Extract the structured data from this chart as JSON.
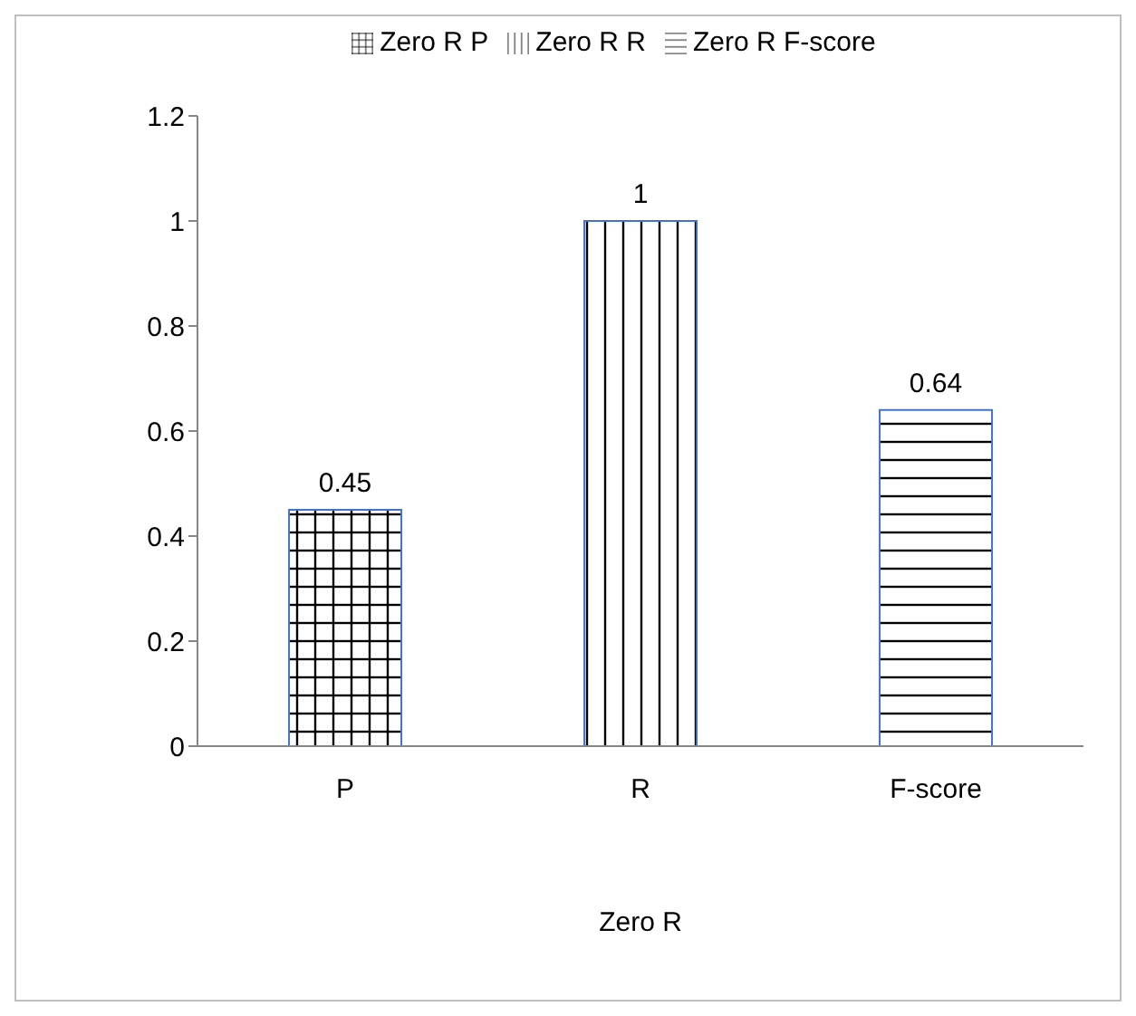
{
  "chart_data": {
    "type": "bar",
    "categories": [
      "P",
      "R",
      "F-score"
    ],
    "xlabel": "Zero R",
    "series": [
      {
        "name": "Zero R P",
        "color": "#4472c4",
        "values": [
          0.45,
          null,
          null
        ]
      },
      {
        "name": "Zero R R",
        "color": "#4472c4",
        "values": [
          null,
          1,
          null
        ]
      },
      {
        "name": "Zero R F-score",
        "color": "#4472c4",
        "values": [
          null,
          null,
          0.64
        ]
      }
    ],
    "ylim": [
      0,
      1.2
    ],
    "yticks": [
      0,
      0.2,
      0.4,
      0.6,
      0.8,
      1,
      1.2
    ],
    "data_labels": true,
    "grid": false,
    "legend": "top"
  }
}
